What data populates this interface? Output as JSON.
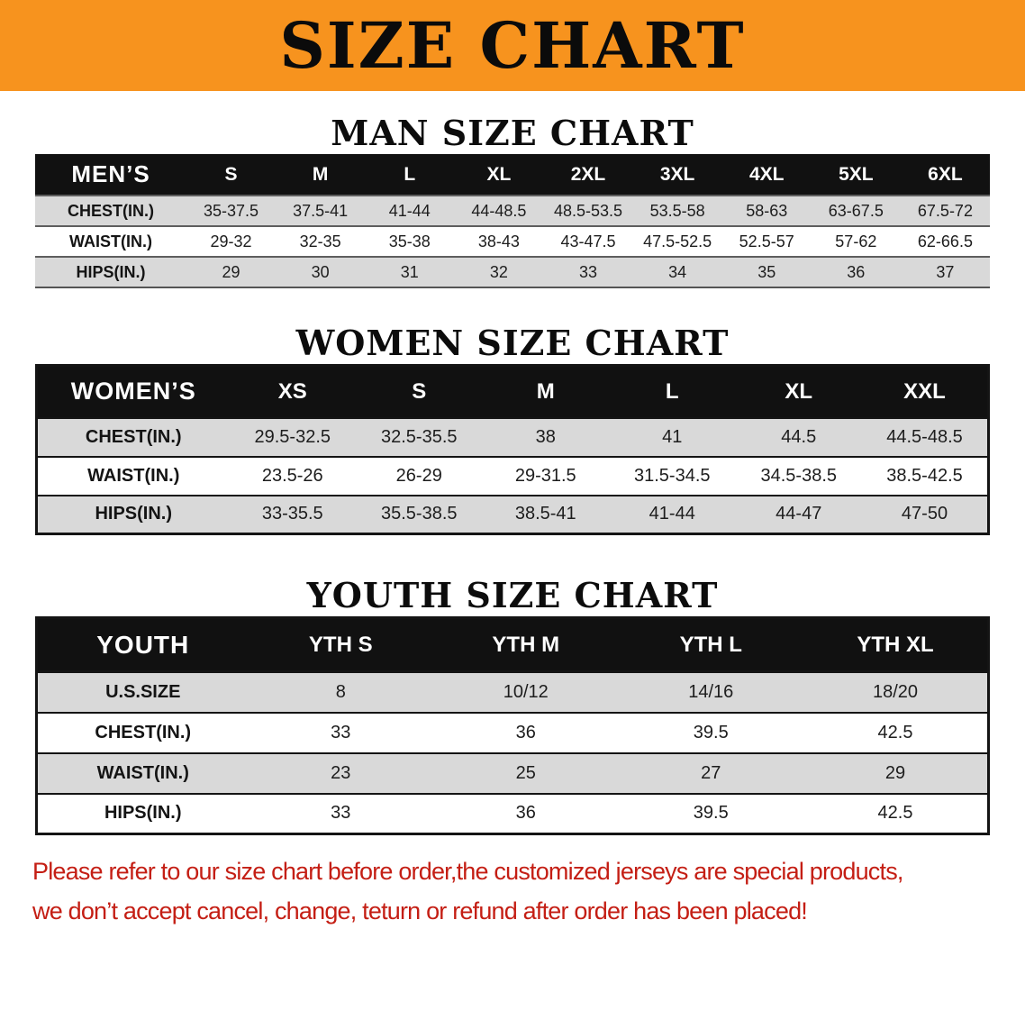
{
  "banner": {
    "title": "SIZE CHART"
  },
  "sections": [
    {
      "heading": "MAN SIZE CHART",
      "table": {
        "header": [
          "MEN’S",
          "S",
          "M",
          "L",
          "XL",
          "2XL",
          "3XL",
          "4XL",
          "5XL",
          "6XL"
        ],
        "rows": [
          [
            "CHEST(IN.)",
            "35-37.5",
            "37.5-41",
            "41-44",
            "44-48.5",
            "48.5-53.5",
            "53.5-58",
            "58-63",
            "63-67.5",
            "67.5-72"
          ],
          [
            "WAIST(IN.)",
            "29-32",
            "32-35",
            "35-38",
            "38-43",
            "43-47.5",
            "47.5-52.5",
            "52.5-57",
            "57-62",
            "62-66.5"
          ],
          [
            "HIPS(IN.)",
            "29",
            "30",
            "31",
            "32",
            "33",
            "34",
            "35",
            "36",
            "37"
          ]
        ]
      }
    },
    {
      "heading": "WOMEN SIZE CHART",
      "table": {
        "header": [
          "WOMEN’S",
          "XS",
          "S",
          "M",
          "L",
          "XL",
          "XXL"
        ],
        "rows": [
          [
            "CHEST(IN.)",
            "29.5-32.5",
            "32.5-35.5",
            "38",
            "41",
            "44.5",
            "44.5-48.5"
          ],
          [
            "WAIST(IN.)",
            "23.5-26",
            "26-29",
            "29-31.5",
            "31.5-34.5",
            "34.5-38.5",
            "38.5-42.5"
          ],
          [
            "HIPS(IN.)",
            "33-35.5",
            "35.5-38.5",
            "38.5-41",
            "41-44",
            "44-47",
            "47-50"
          ]
        ]
      }
    },
    {
      "heading": "YOUTH SIZE CHART",
      "table": {
        "header": [
          "YOUTH",
          "YTH S",
          "YTH M",
          "YTH L",
          "YTH XL"
        ],
        "rows": [
          [
            "U.S.SIZE",
            "8",
            "10/12",
            "14/16",
            "18/20"
          ],
          [
            "CHEST(IN.)",
            "33",
            "36",
            "39.5",
            "42.5"
          ],
          [
            "WAIST(IN.)",
            "23",
            "25",
            "27",
            "29"
          ],
          [
            "HIPS(IN.)",
            "33",
            "36",
            "39.5",
            "42.5"
          ]
        ]
      }
    }
  ],
  "footer": {
    "line1": "Please refer to our size chart before order,the customized jerseys are special products,",
    "line2": "we don’t accept cancel, change, teturn or refund after order has been placed!"
  },
  "colors": {
    "banner_bg": "#F7931E",
    "table_header_bg": "#111111",
    "row_alt_bg": "#D9D9D9",
    "footer_text": "#C41E14"
  }
}
